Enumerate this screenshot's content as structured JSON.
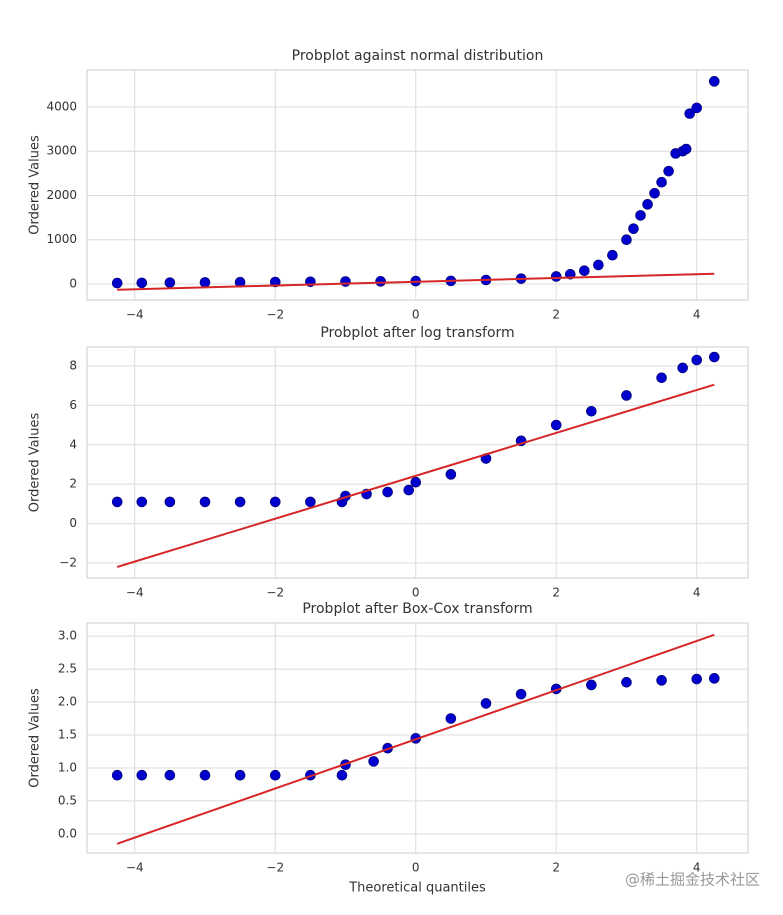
{
  "chart_data": [
    {
      "type": "scatter",
      "title": "Probplot against normal distribution",
      "ylabel": "Ordered Values",
      "grid": true,
      "xlim": [
        -4.68,
        4.73
      ],
      "ylim": [
        -362,
        4836
      ],
      "xticks": [
        {
          "value": -4,
          "label": "−4"
        },
        {
          "value": -2,
          "label": "−2"
        },
        0,
        2,
        4
      ],
      "yticks": [
        0,
        1000,
        2000,
        3000,
        4000
      ],
      "series": [
        {
          "type": "scatter",
          "color": "#0000cc",
          "x": [
            -4.25,
            -3.9,
            -3.5,
            -3,
            -2.5,
            -2,
            -1.5,
            -1,
            -0.5,
            0,
            0.5,
            1,
            1.5,
            2,
            2.2,
            2.4,
            2.6,
            2.8,
            3.0,
            3.1,
            3.2,
            3.3,
            3.4,
            3.5,
            3.6,
            3.7,
            3.8,
            3.85,
            3.9,
            4.0,
            4.25
          ],
          "values": [
            20,
            25,
            30,
            35,
            40,
            45,
            50,
            55,
            60,
            65,
            70,
            90,
            120,
            170,
            220,
            300,
            430,
            650,
            1000,
            1250,
            1550,
            1800,
            2050,
            2300,
            2550,
            2950,
            3000,
            3050,
            3850,
            3980,
            4580
          ]
        },
        {
          "type": "line",
          "color": "#d62728",
          "x": [
            -4.25,
            4.25
          ],
          "values": [
            -130,
            230
          ]
        }
      ]
    },
    {
      "type": "scatter",
      "title": "Probplot after log transform",
      "ylabel": "Ordered Values",
      "grid": true,
      "xlim": [
        -4.68,
        4.73
      ],
      "ylim": [
        -2.76,
        8.96
      ],
      "xticks": [
        {
          "value": -4,
          "label": "−4"
        },
        {
          "value": -2,
          "label": "−2"
        },
        0,
        2,
        4
      ],
      "yticks": [
        {
          "value": -2,
          "label": "−2"
        },
        0,
        2,
        4,
        6,
        8
      ],
      "series": [
        {
          "type": "scatter",
          "color": "#0000cc",
          "x": [
            -4.25,
            -3.9,
            -3.5,
            -3,
            -2.5,
            -2,
            -1.5,
            -1.05,
            -1,
            -0.7,
            -0.4,
            -0.1,
            0,
            0.5,
            1,
            1.5,
            2,
            2.5,
            3,
            3.5,
            3.8,
            4,
            4.25
          ],
          "values": [
            1.1,
            1.1,
            1.1,
            1.1,
            1.1,
            1.1,
            1.1,
            1.1,
            1.4,
            1.5,
            1.6,
            1.7,
            2.1,
            2.5,
            3.3,
            4.2,
            5.0,
            5.7,
            6.5,
            7.4,
            7.9,
            8.3,
            8.45
          ]
        },
        {
          "type": "line",
          "color": "#d62728",
          "x": [
            -4.25,
            4.25
          ],
          "values": [
            -2.2,
            7.05
          ]
        }
      ]
    },
    {
      "type": "scatter",
      "title": "Probplot after Box-Cox transform",
      "xlabel": "Theoretical quantiles",
      "ylabel": "Ordered Values",
      "grid": true,
      "xlim": [
        -4.68,
        4.73
      ],
      "ylim": [
        -0.29,
        3.2
      ],
      "xticks": [
        {
          "value": -4,
          "label": "−4"
        },
        {
          "value": -2,
          "label": "−2"
        },
        0,
        2,
        4
      ],
      "yticks": [
        {
          "value": 0,
          "label": "0.0"
        },
        0.5,
        {
          "value": 1,
          "label": "1.0"
        },
        1.5,
        {
          "value": 2,
          "label": "2.0"
        },
        2.5,
        {
          "value": 3,
          "label": "3.0"
        }
      ],
      "series": [
        {
          "type": "scatter",
          "color": "#0000cc",
          "x": [
            -4.25,
            -3.9,
            -3.5,
            -3,
            -2.5,
            -2,
            -1.5,
            -1.05,
            -1,
            -0.6,
            -0.4,
            0,
            0.5,
            1,
            1.5,
            2,
            2.5,
            3,
            3.5,
            4,
            4.25
          ],
          "values": [
            0.89,
            0.89,
            0.89,
            0.89,
            0.89,
            0.89,
            0.89,
            0.89,
            1.05,
            1.1,
            1.3,
            1.45,
            1.75,
            1.98,
            2.12,
            2.2,
            2.26,
            2.3,
            2.33,
            2.35,
            2.36
          ]
        },
        {
          "type": "line",
          "color": "#d62728",
          "x": [
            -4.25,
            4.25
          ],
          "values": [
            -0.15,
            3.02
          ]
        }
      ]
    }
  ],
  "watermark": "@稀土掘金技术社区"
}
